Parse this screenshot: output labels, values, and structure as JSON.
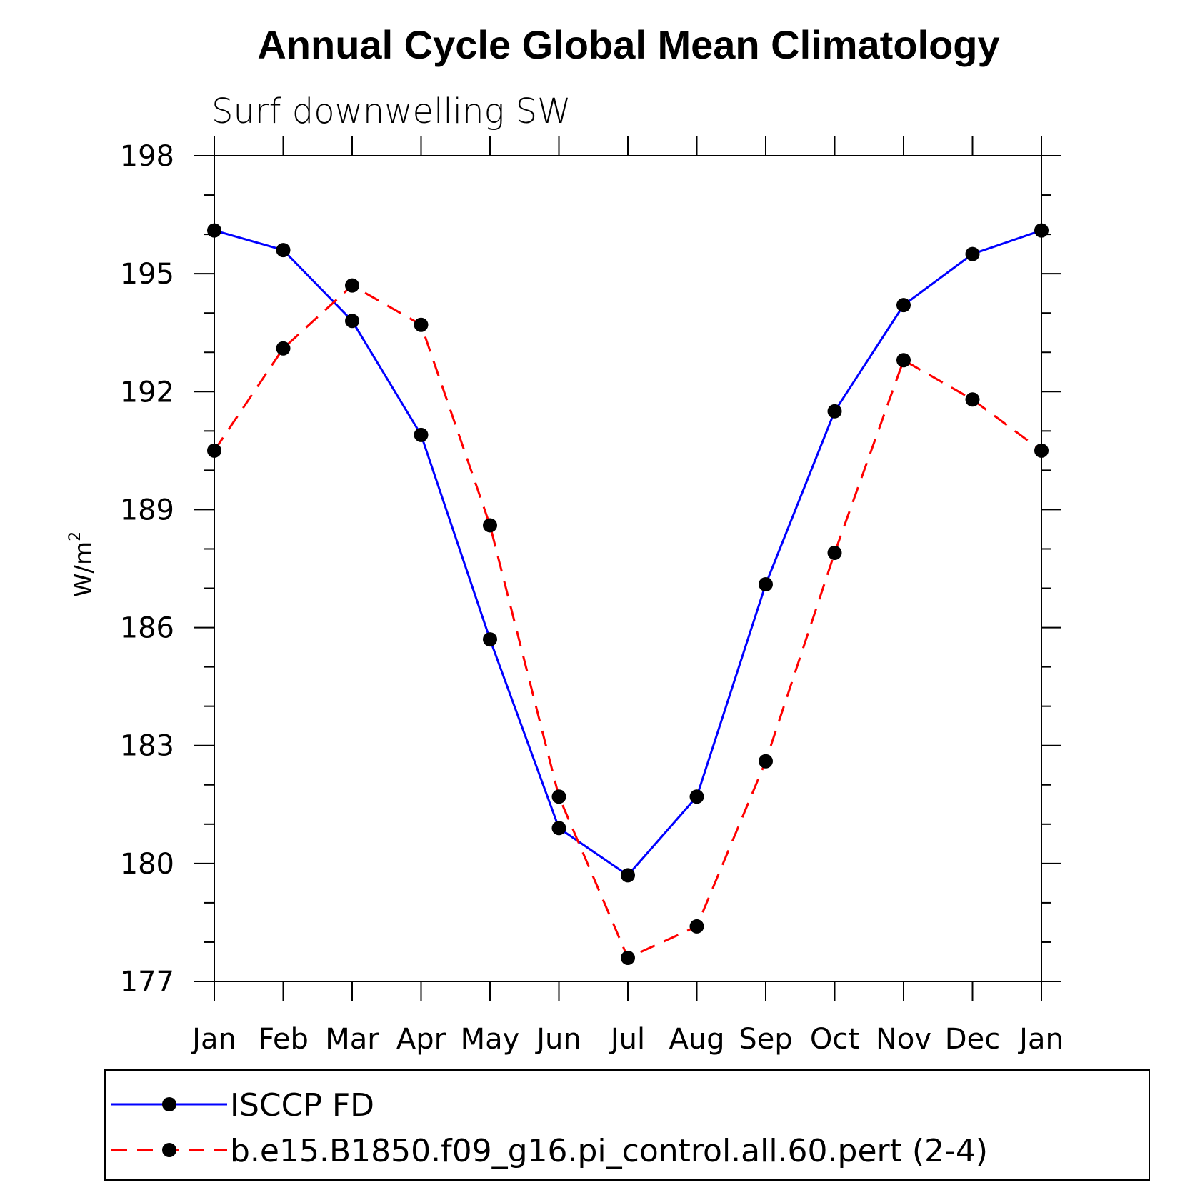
{
  "chart_data": {
    "type": "line",
    "title": "Annual Cycle Global Mean Climatology",
    "subtitle": "Surf downwelling SW",
    "ylabel": "W/m",
    "ylabel_sup": "2",
    "xlabel": "",
    "categories": [
      "Jan",
      "Feb",
      "Mar",
      "Apr",
      "May",
      "Jun",
      "Jul",
      "Aug",
      "Sep",
      "Oct",
      "Nov",
      "Dec",
      "Jan"
    ],
    "ylim": [
      177,
      198
    ],
    "yticks": [
      177,
      180,
      183,
      186,
      189,
      192,
      195,
      198
    ],
    "legend_position": "bottom",
    "grid": false,
    "series": [
      {
        "name": "ISCCP FD",
        "color": "#0000ff",
        "dash": "solid",
        "marker": "filled-circle",
        "values": [
          196.1,
          195.6,
          193.8,
          190.9,
          185.7,
          180.9,
          179.7,
          181.7,
          187.1,
          191.5,
          194.2,
          195.5,
          196.1
        ]
      },
      {
        "name": "b.e15.B1850.f09_g16.pi_control.all.60.pert (2-4)",
        "color": "#ff0000",
        "dash": "dashed",
        "marker": "filled-circle",
        "values": [
          190.5,
          193.1,
          194.7,
          193.7,
          188.6,
          181.7,
          177.6,
          178.4,
          182.6,
          187.9,
          192.8,
          191.8,
          190.5
        ]
      }
    ]
  }
}
